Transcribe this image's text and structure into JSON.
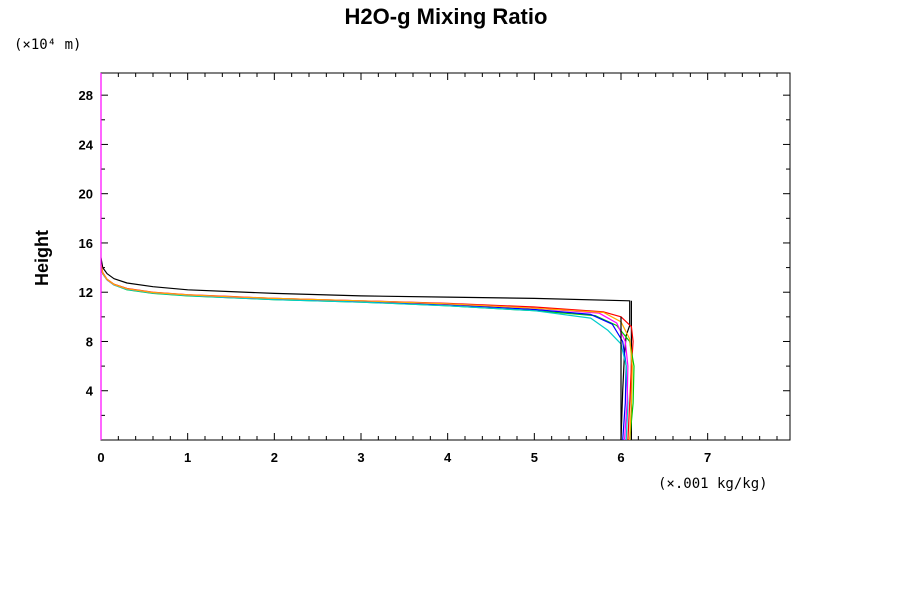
{
  "chart_data": {
    "type": "line",
    "title": "H2O-g Mixing Ratio",
    "xlabel": "",
    "ylabel": "Height",
    "x_unit_label": "(×.001 kg/kg)",
    "y_unit_label": "(×10⁴ m)",
    "xlim": [
      0,
      7.95
    ],
    "ylim": [
      0,
      29.8
    ],
    "x_ticks": [
      0,
      1,
      2,
      3,
      4,
      5,
      6,
      7
    ],
    "x_tick_labels": [
      "0",
      "1",
      "2",
      "3",
      "4",
      "5",
      "6",
      "7"
    ],
    "y_ticks": [
      4,
      8,
      12,
      16,
      20,
      24,
      28
    ],
    "y_tick_labels": [
      "4",
      "8",
      "12",
      "16",
      "20",
      "24",
      "28"
    ],
    "grid": false,
    "legend": "none",
    "series": [
      {
        "color": "#000000",
        "points": [
          [
            6.0,
            0
          ],
          [
            6.02,
            4
          ],
          [
            6.04,
            7
          ],
          [
            6.06,
            8.5
          ],
          [
            6.1,
            9.3
          ],
          [
            6.1,
            11.3
          ],
          [
            5.0,
            11.5
          ],
          [
            4.0,
            11.6
          ],
          [
            3.0,
            11.7
          ],
          [
            2.0,
            11.9
          ],
          [
            1.5,
            12.05
          ],
          [
            1.0,
            12.2
          ],
          [
            0.6,
            12.45
          ],
          [
            0.3,
            12.75
          ],
          [
            0.15,
            13.1
          ],
          [
            0.07,
            13.5
          ],
          [
            0.02,
            14.0
          ],
          [
            0.0,
            14.8
          ]
        ]
      },
      {
        "color": "#000000",
        "points": [
          [
            6.12,
            0
          ],
          [
            6.12,
            4
          ],
          [
            6.12,
            11.3
          ]
        ]
      },
      {
        "color": "#ff0000",
        "points": [
          [
            6.08,
            0
          ],
          [
            6.1,
            3
          ],
          [
            6.12,
            6
          ],
          [
            6.14,
            8
          ],
          [
            6.12,
            9.2
          ],
          [
            6.0,
            10.0
          ],
          [
            5.8,
            10.4
          ],
          [
            5.0,
            10.8
          ],
          [
            4.0,
            11.1
          ],
          [
            3.0,
            11.3
          ],
          [
            2.0,
            11.5
          ],
          [
            1.5,
            11.65
          ],
          [
            1.0,
            11.8
          ],
          [
            0.6,
            12.0
          ],
          [
            0.3,
            12.3
          ],
          [
            0.15,
            12.65
          ],
          [
            0.07,
            13.05
          ],
          [
            0.02,
            13.6
          ],
          [
            0.0,
            14.3
          ]
        ]
      },
      {
        "color": "#00cc00",
        "points": [
          [
            6.1,
            0
          ],
          [
            6.14,
            3
          ],
          [
            6.15,
            6
          ],
          [
            6.1,
            8.0
          ],
          [
            5.95,
            9.3
          ],
          [
            5.7,
            10.1
          ],
          [
            5.0,
            10.5
          ],
          [
            4.0,
            10.9
          ],
          [
            3.0,
            11.2
          ],
          [
            2.0,
            11.4
          ],
          [
            1.5,
            11.55
          ],
          [
            1.0,
            11.7
          ],
          [
            0.6,
            11.9
          ],
          [
            0.3,
            12.2
          ],
          [
            0.15,
            12.6
          ],
          [
            0.07,
            13.0
          ],
          [
            0.02,
            13.5
          ],
          [
            0.0,
            14.2
          ]
        ]
      },
      {
        "color": "#0000ff",
        "points": [
          [
            6.02,
            0
          ],
          [
            6.05,
            3
          ],
          [
            6.06,
            6
          ],
          [
            6.02,
            8.0
          ],
          [
            5.9,
            9.4
          ],
          [
            5.65,
            10.2
          ],
          [
            5.0,
            10.6
          ],
          [
            4.0,
            11.0
          ],
          [
            3.0,
            11.25
          ],
          [
            2.0,
            11.45
          ],
          [
            1.5,
            11.6
          ],
          [
            1.0,
            11.75
          ],
          [
            0.6,
            11.95
          ],
          [
            0.3,
            12.25
          ],
          [
            0.15,
            12.6
          ],
          [
            0.07,
            13.0
          ],
          [
            0.02,
            13.5
          ],
          [
            0.0,
            14.2
          ]
        ]
      },
      {
        "color": "#00cccc",
        "points": [
          [
            6.06,
            0
          ],
          [
            6.08,
            3
          ],
          [
            6.06,
            6
          ],
          [
            6.0,
            7.8
          ],
          [
            5.85,
            8.9
          ],
          [
            5.65,
            9.9
          ],
          [
            5.0,
            10.5
          ],
          [
            4.0,
            10.9
          ],
          [
            3.0,
            11.2
          ],
          [
            2.0,
            11.4
          ],
          [
            1.5,
            11.55
          ],
          [
            1.0,
            11.72
          ],
          [
            0.6,
            11.92
          ],
          [
            0.3,
            12.22
          ],
          [
            0.15,
            12.58
          ],
          [
            0.07,
            13.0
          ],
          [
            0.02,
            13.5
          ],
          [
            0.0,
            14.2
          ]
        ]
      },
      {
        "color": "#ff00ff",
        "points": [
          [
            6.04,
            0
          ],
          [
            6.07,
            3
          ],
          [
            6.08,
            6
          ],
          [
            6.05,
            8.0
          ],
          [
            5.95,
            9.5
          ],
          [
            5.75,
            10.3
          ],
          [
            5.0,
            10.7
          ],
          [
            4.0,
            11.05
          ],
          [
            3.0,
            11.3
          ],
          [
            2.0,
            11.5
          ],
          [
            1.5,
            11.62
          ],
          [
            1.0,
            11.78
          ],
          [
            0.6,
            11.98
          ],
          [
            0.3,
            12.28
          ],
          [
            0.15,
            12.62
          ],
          [
            0.07,
            13.02
          ],
          [
            0.02,
            13.55
          ],
          [
            0.0,
            14.25
          ]
        ]
      },
      {
        "color": "#ffaa00",
        "points": [
          [
            6.1,
            0
          ],
          [
            6.12,
            3
          ],
          [
            6.13,
            6
          ],
          [
            6.1,
            8.2
          ],
          [
            6.0,
            9.6
          ],
          [
            5.8,
            10.35
          ],
          [
            5.0,
            10.7
          ],
          [
            4.0,
            11.05
          ],
          [
            3.0,
            11.3
          ],
          [
            2.0,
            11.5
          ],
          [
            1.5,
            11.63
          ],
          [
            1.0,
            11.78
          ],
          [
            0.6,
            11.98
          ],
          [
            0.3,
            12.28
          ],
          [
            0.15,
            12.63
          ],
          [
            0.07,
            13.03
          ],
          [
            0.02,
            13.55
          ],
          [
            0.0,
            14.25
          ]
        ]
      },
      {
        "color": "#ff00ff",
        "points": [
          [
            0.0,
            0
          ],
          [
            0.0,
            29.8
          ]
        ]
      },
      {
        "color": "#000000",
        "points": [
          [
            6.0,
            0
          ],
          [
            6.0,
            10.0
          ]
        ]
      }
    ]
  }
}
